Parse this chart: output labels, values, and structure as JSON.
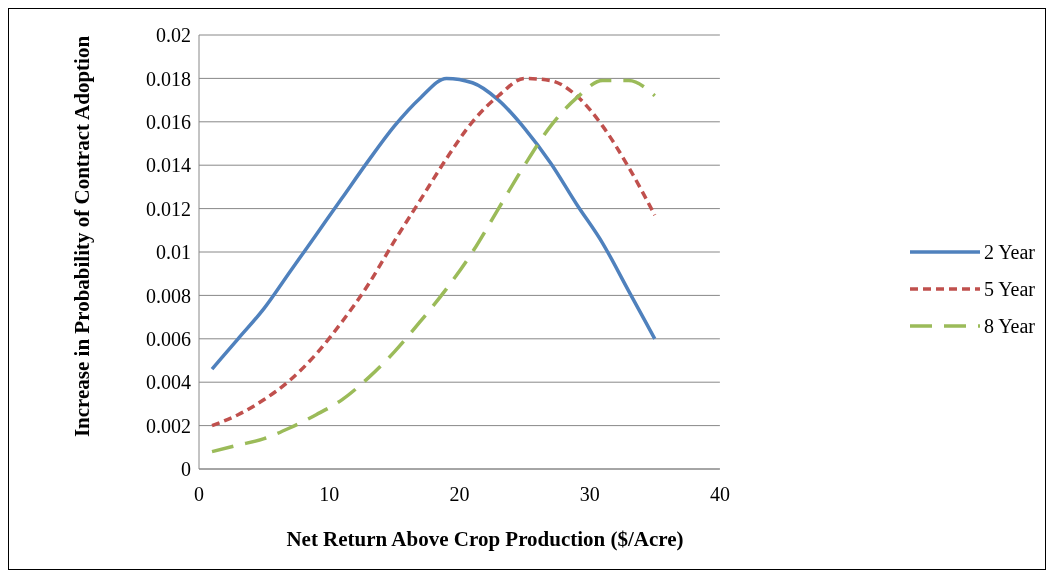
{
  "chart_data": {
    "type": "line",
    "xlabel": "Net Return Above Crop Production ($/Acre)",
    "ylabel": "Increase in Probability of Contract Adoption",
    "x": [
      1,
      3,
      5,
      7,
      9,
      11,
      13,
      15,
      17,
      19,
      21,
      23,
      25,
      27,
      29,
      31,
      33,
      35
    ],
    "series": [
      {
        "name": "2 Year",
        "color": "#4f81bd",
        "line_style": "solid",
        "values": [
          0.0046,
          0.006,
          0.0074,
          0.0091,
          0.0108,
          0.0125,
          0.0142,
          0.0158,
          0.0171,
          0.018,
          0.0178,
          0.017,
          0.0157,
          0.0141,
          0.0122,
          0.0104,
          0.0082,
          0.006
        ]
      },
      {
        "name": "5 Year",
        "color": "#c0504d",
        "line_style": "dashed",
        "values": [
          0.002,
          0.0025,
          0.0032,
          0.0041,
          0.0053,
          0.0068,
          0.0085,
          0.0105,
          0.0124,
          0.0143,
          0.016,
          0.0172,
          0.018,
          0.0179,
          0.0172,
          0.0158,
          0.0139,
          0.0117
        ]
      },
      {
        "name": "8 Year",
        "color": "#9bbb59",
        "line_style": "long dashed",
        "values": [
          0.0008,
          0.0011,
          0.0014,
          0.0019,
          0.0025,
          0.0032,
          0.0042,
          0.0054,
          0.0068,
          0.0083,
          0.01,
          0.012,
          0.014,
          0.0158,
          0.0171,
          0.0179,
          0.0179,
          0.0172
        ]
      }
    ],
    "xlim": [
      0,
      40
    ],
    "xticks": [
      0,
      10,
      20,
      30,
      40
    ],
    "ylim": [
      0,
      0.02
    ],
    "yticks": [
      0,
      0.002,
      0.004,
      0.006,
      0.008,
      0.01,
      0.012,
      0.014,
      0.016,
      0.018,
      0.02
    ],
    "grid": "y",
    "legend": "right",
    "marker": "none"
  }
}
